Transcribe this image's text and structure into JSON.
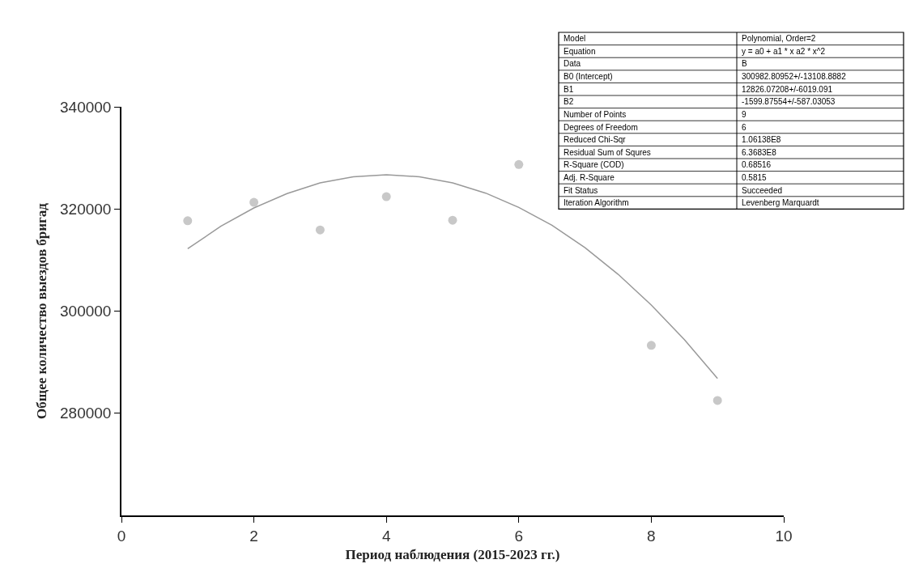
{
  "chart_data": {
    "type": "scatter",
    "xlabel": "Период наблюдения (2015-2023 гг.)",
    "ylabel": "Общее количество выездов бригад",
    "xlim": [
      0,
      10
    ],
    "xticks": [
      0,
      2,
      4,
      6,
      8,
      10
    ],
    "ylim": [
      260000,
      340000
    ],
    "yticks": [
      280000,
      300000,
      320000,
      340000
    ],
    "series": [
      {
        "color": "#c8c8c8",
        "marker": "circle",
        "x": [
          1,
          2,
          3,
          4,
          5,
          6,
          8,
          9
        ],
        "values": [
          317700,
          321300,
          315900,
          322400,
          317800,
          328700,
          293300,
          282500
        ]
      },
      {
        "type": "line",
        "color": "#999999",
        "line_style": "solid",
        "marker": "none",
        "x": [
          1,
          1.5,
          2,
          2.5,
          3,
          3.5,
          4,
          4.5,
          5,
          5.5,
          6,
          6.5,
          7,
          7.5,
          8,
          8.5,
          9
        ],
        "values": [
          312200,
          316600,
          320200,
          323000,
          325100,
          326300,
          326700,
          326300,
          325100,
          323100,
          320300,
          316800,
          312400,
          307200,
          301200,
          294400,
          286800
        ]
      }
    ],
    "annotations": [
      "Model",
      "Polynomial, Order=2",
      "Equation",
      "y = a0 + a1 * x a2 * x^2",
      "Data",
      "B",
      "B0 (Intercept)",
      "300982.80952+/-13108.8882",
      "B1",
      "12826.07208+/-6019.091",
      "B2",
      "-1599.87554+/-587.03053",
      "Number of Points",
      "9",
      "Degrees of Freedom",
      "6",
      "Reduced Chi-Sqr",
      "1.06138E8",
      "Residual Sum of Squres",
      "6.3683E8",
      "R-Square (COD)",
      "0.68516",
      "Adj. R-Square",
      "0.5815",
      "Fit Status",
      "Succeeded",
      "Iteration Algorithm",
      "Levenberg Marquardt"
    ]
  }
}
